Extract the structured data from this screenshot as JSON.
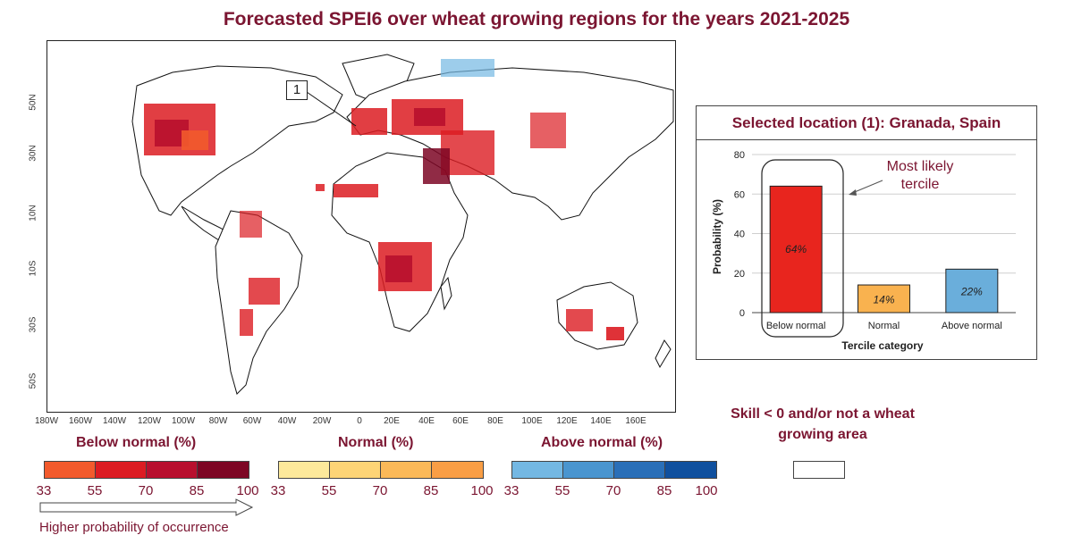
{
  "title": "Forecasted SPEI6 over wheat growing regions for the years 2021-2025",
  "map": {
    "lat_labels": [
      "50N",
      "30N",
      "10N",
      "10S",
      "30S",
      "50S"
    ],
    "lon_labels": [
      "180W",
      "160W",
      "140W",
      "120W",
      "100W",
      "80W",
      "60W",
      "40W",
      "20W",
      "0",
      "20E",
      "40E",
      "60E",
      "80E",
      "100E",
      "120E",
      "140E",
      "160E"
    ],
    "callout_label": "1"
  },
  "panel": {
    "title": "Selected location (1): Granada, Spain",
    "annotation": "Most likely tercile"
  },
  "chart_data": {
    "type": "bar",
    "categories": [
      "Below normal",
      "Normal",
      "Above normal"
    ],
    "values": [
      64,
      14,
      22
    ],
    "value_labels": [
      "64%",
      "14%",
      "22%"
    ],
    "colors": [
      "#e8251e",
      "#f9b24f",
      "#6aaedb"
    ],
    "ylabel": "Probability (%)",
    "xlabel": "Tercile category",
    "ylim": [
      0,
      80
    ],
    "yticks": [
      0,
      20,
      40,
      60,
      80
    ],
    "grid": true
  },
  "legend": {
    "below_title": "Below normal (%)",
    "normal_title": "Normal (%)",
    "above_title": "Above normal (%)",
    "ticks": [
      "33",
      "55",
      "70",
      "85",
      "100"
    ],
    "below_colors": [
      "#f25a2c",
      "#dc1c22",
      "#b80f2e",
      "#7d0624"
    ],
    "normal_colors": [
      "#fde99b",
      "#fdd476",
      "#fbb958",
      "#f99e45"
    ],
    "above_colors": [
      "#74b8e3",
      "#4a95cf",
      "#2a6fb8",
      "#10509e"
    ],
    "skill_text": "Skill < 0 and/or not a wheat growing area",
    "higher_text": "Higher probability of occurrence"
  }
}
